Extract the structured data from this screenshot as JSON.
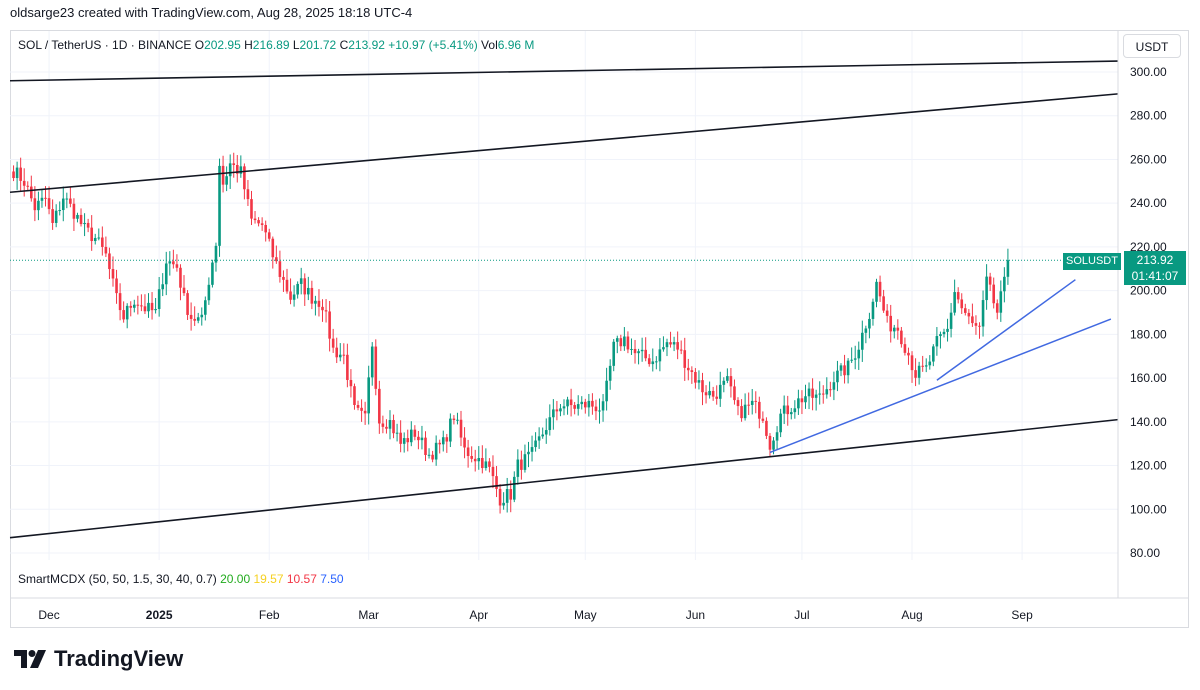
{
  "header": {
    "attribution": "oldsarge23 created with TradingView.com, Aug 28, 2025 18:18 UTC-4"
  },
  "legend": {
    "symbol": "SOL / TetherUS · 1D · BINANCE",
    "o_label": "O",
    "o_value": "202.95",
    "h_label": "H",
    "h_value": "216.89",
    "l_label": "L",
    "l_value": "201.72",
    "c_label": "C",
    "c_value": "213.92",
    "change": "+10.97 (+5.41%)",
    "vol_label": "Vol",
    "vol_value": "6.96 M"
  },
  "indicator": {
    "name": "SmartMCDX (50, 50, 1.5, 30, 40, 0.7)",
    "values": [
      "20.00",
      "19.57",
      "10.57",
      "7.50"
    ],
    "colors": [
      "#22ab1e",
      "#f5d020",
      "#f23645",
      "#2962ff"
    ]
  },
  "currency_button": "USDT",
  "price_tag": {
    "symbol": "SOLUSDT",
    "price": "213.92",
    "countdown": "01:41:07",
    "color": "#089981"
  },
  "logo": {
    "text": "TradingView"
  },
  "colors": {
    "up": "#089981",
    "down": "#f23645",
    "channel": "#131722",
    "trend": "#4169e1"
  },
  "chart_data": {
    "type": "candlestick",
    "title": "SOL / TetherUS · 1D · BINANCE",
    "ylim": [
      75,
      310
    ],
    "y_ticks": [
      "300.00",
      "280.00",
      "260.00",
      "240.00",
      "220.00",
      "200.00",
      "180.00",
      "160.00",
      "140.00",
      "120.00",
      "100.00",
      "80.00"
    ],
    "x_ticks": [
      "Dec",
      "2025",
      "Feb",
      "Mar",
      "Apr",
      "May",
      "Jun",
      "Jul",
      "Aug",
      "Sep"
    ],
    "x_tick_dates": [
      "2024-12-01",
      "2025-01-01",
      "2025-02-01",
      "2025-03-01",
      "2025-04-01",
      "2025-05-01",
      "2025-06-01",
      "2025-07-01",
      "2025-08-01",
      "2025-09-01"
    ],
    "x_range": [
      "2024-11-20",
      "2025-09-28"
    ],
    "last_price": 213.92,
    "grid": true,
    "close_path": [
      [
        "2024-11-21",
        255
      ],
      [
        "2024-11-24",
        250
      ],
      [
        "2024-11-27",
        238
      ],
      [
        "2024-11-30",
        242
      ],
      [
        "2024-12-02",
        230
      ],
      [
        "2024-12-05",
        243
      ],
      [
        "2024-12-08",
        236
      ],
      [
        "2024-12-11",
        228
      ],
      [
        "2024-12-14",
        224
      ],
      [
        "2024-12-17",
        216
      ],
      [
        "2024-12-20",
        196
      ],
      [
        "2024-12-22",
        188
      ],
      [
        "2024-12-25",
        196
      ],
      [
        "2024-12-28",
        192
      ],
      [
        "2024-12-31",
        190
      ],
      [
        "2025-01-03",
        214
      ],
      [
        "2025-01-06",
        211
      ],
      [
        "2025-01-08",
        196
      ],
      [
        "2025-01-10",
        188
      ],
      [
        "2025-01-13",
        186
      ],
      [
        "2025-01-15",
        205
      ],
      [
        "2025-01-17",
        222
      ],
      [
        "2025-01-18",
        258
      ],
      [
        "2025-01-19",
        249
      ],
      [
        "2025-01-21",
        258
      ],
      [
        "2025-01-24",
        254
      ],
      [
        "2025-01-27",
        232
      ],
      [
        "2025-01-30",
        230
      ],
      [
        "2025-02-02",
        216
      ],
      [
        "2025-02-04",
        208
      ],
      [
        "2025-02-07",
        197
      ],
      [
        "2025-02-10",
        203
      ],
      [
        "2025-02-13",
        197
      ],
      [
        "2025-02-16",
        194
      ],
      [
        "2025-02-19",
        173
      ],
      [
        "2025-02-22",
        170
      ],
      [
        "2025-02-25",
        145
      ],
      [
        "2025-02-28",
        141
      ],
      [
        "2025-03-02",
        176
      ],
      [
        "2025-03-04",
        141
      ],
      [
        "2025-03-07",
        140
      ],
      [
        "2025-03-10",
        130
      ],
      [
        "2025-03-14",
        135
      ],
      [
        "2025-03-18",
        125
      ],
      [
        "2025-03-22",
        130
      ],
      [
        "2025-03-25",
        143
      ],
      [
        "2025-03-28",
        127
      ],
      [
        "2025-04-02",
        122
      ],
      [
        "2025-04-04",
        118
      ],
      [
        "2025-04-07",
        105
      ],
      [
        "2025-04-10",
        107
      ],
      [
        "2025-04-12",
        120
      ],
      [
        "2025-04-16",
        125
      ],
      [
        "2025-04-20",
        138
      ],
      [
        "2025-04-24",
        148
      ],
      [
        "2025-04-28",
        147
      ],
      [
        "2025-05-02",
        148
      ],
      [
        "2025-05-06",
        146
      ],
      [
        "2025-05-09",
        174
      ],
      [
        "2025-05-12",
        178
      ],
      [
        "2025-05-15",
        171
      ],
      [
        "2025-05-20",
        168
      ],
      [
        "2025-05-24",
        176
      ],
      [
        "2025-05-27",
        174
      ],
      [
        "2025-05-30",
        165
      ],
      [
        "2025-06-03",
        155
      ],
      [
        "2025-06-06",
        152
      ],
      [
        "2025-06-10",
        158
      ],
      [
        "2025-06-13",
        144
      ],
      [
        "2025-06-17",
        148
      ],
      [
        "2025-06-20",
        143
      ],
      [
        "2025-06-22",
        130
      ],
      [
        "2025-06-25",
        143
      ],
      [
        "2025-06-28",
        147
      ],
      [
        "2025-07-02",
        152
      ],
      [
        "2025-07-06",
        151
      ],
      [
        "2025-07-10",
        160
      ],
      [
        "2025-07-14",
        165
      ],
      [
        "2025-07-17",
        175
      ],
      [
        "2025-07-20",
        190
      ],
      [
        "2025-07-22",
        203
      ],
      [
        "2025-07-25",
        185
      ],
      [
        "2025-07-28",
        183
      ],
      [
        "2025-07-31",
        171
      ],
      [
        "2025-08-02",
        162
      ],
      [
        "2025-08-05",
        164
      ],
      [
        "2025-08-08",
        176
      ],
      [
        "2025-08-11",
        182
      ],
      [
        "2025-08-13",
        200
      ],
      [
        "2025-08-15",
        192
      ],
      [
        "2025-08-18",
        184
      ],
      [
        "2025-08-20",
        182
      ],
      [
        "2025-08-22",
        204
      ],
      [
        "2025-08-25",
        190
      ],
      [
        "2025-08-27",
        203
      ],
      [
        "2025-08-28",
        213.92
      ]
    ],
    "trendlines": [
      {
        "role": "channel-top-outer",
        "color": "#131722",
        "points": [
          [
            "2024-11-20",
            296
          ],
          [
            "2025-09-28",
            305
          ]
        ]
      },
      {
        "role": "channel-top-inner",
        "color": "#131722",
        "points": [
          [
            "2024-11-20",
            245
          ],
          [
            "2025-09-28",
            290
          ]
        ]
      },
      {
        "role": "channel-bottom",
        "color": "#131722",
        "points": [
          [
            "2024-11-20",
            87
          ],
          [
            "2025-09-28",
            141
          ]
        ]
      },
      {
        "role": "rising-support-1",
        "color": "#4169e1",
        "points": [
          [
            "2025-06-22",
            126
          ],
          [
            "2025-09-26",
            187
          ]
        ]
      },
      {
        "role": "rising-support-2",
        "color": "#4169e1",
        "points": [
          [
            "2025-08-08",
            159
          ],
          [
            "2025-09-16",
            205
          ]
        ]
      }
    ]
  }
}
